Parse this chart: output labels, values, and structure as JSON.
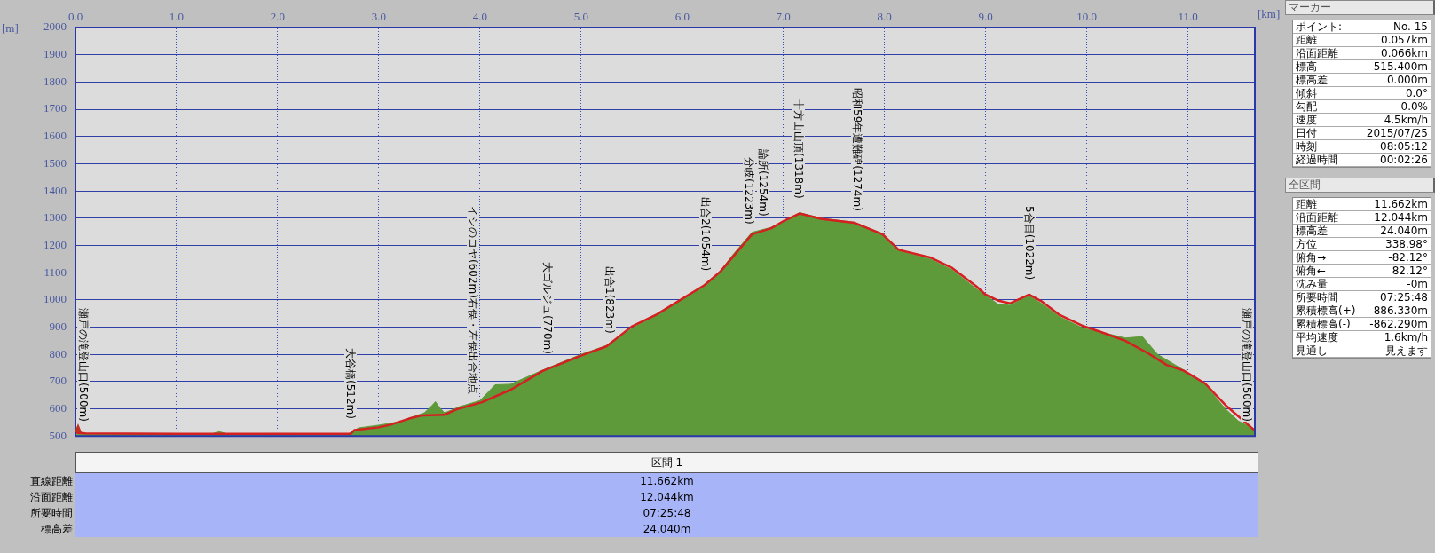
{
  "chart_data": [
    {
      "type": "area",
      "xlabel": "[km]",
      "ylabel": "[m]",
      "xlim": [
        0,
        11.662
      ],
      "ylim": [
        500,
        2000
      ],
      "xticks": [
        {
          "value": 0,
          "label": "0.0"
        },
        {
          "value": 1,
          "label": "1.0"
        },
        {
          "value": 2,
          "label": "2.0"
        },
        {
          "value": 3,
          "label": "3.0"
        },
        {
          "value": 4,
          "label": "4.0"
        },
        {
          "value": 5,
          "label": "5.0"
        },
        {
          "value": 6,
          "label": "6.0"
        },
        {
          "value": 7,
          "label": "7.0"
        },
        {
          "value": 8,
          "label": "8.0"
        },
        {
          "value": 9,
          "label": "9.0"
        },
        {
          "value": 10,
          "label": "10.0"
        },
        {
          "value": 11,
          "label": "11.0"
        }
      ],
      "yticks": [
        500,
        600,
        700,
        800,
        900,
        1000,
        1100,
        1200,
        1300,
        1400,
        1500,
        1600,
        1700,
        1800,
        1900,
        2000
      ],
      "grid": true,
      "legend": false,
      "series": [
        {
          "type": "area",
          "color": "#5f9a3a",
          "x": [
            0,
            0.5,
            1.35,
            1.42,
            1.5,
            2.0,
            2.7,
            2.8,
            3.0,
            3.2,
            3.3,
            3.45,
            3.52,
            3.56,
            3.6,
            3.65,
            3.8,
            4.0,
            4.15,
            4.3,
            4.62,
            5.0,
            5.25,
            5.5,
            5.75,
            6.0,
            6.22,
            6.38,
            6.51,
            6.69,
            6.88,
            7.01,
            7.16,
            7.38,
            7.7,
            7.98,
            8.14,
            8.45,
            8.67,
            8.91,
            9.12,
            9.24,
            9.43,
            9.56,
            9.73,
            9.97,
            10.14,
            10.38,
            10.55,
            10.7,
            10.96,
            11.17,
            11.37,
            11.5,
            11.662
          ],
          "values": [
            505,
            507,
            508,
            516,
            508,
            509,
            508,
            530,
            540,
            552,
            566,
            585,
            610,
            626,
            605,
            585,
            608,
            630,
            688,
            690,
            742,
            800,
            832,
            895,
            945,
            1002,
            1050,
            1108,
            1170,
            1248,
            1266,
            1290,
            1320,
            1299,
            1285,
            1243,
            1180,
            1150,
            1110,
            1040,
            985,
            980,
            1015,
            985,
            938,
            895,
            882,
            860,
            865,
            800,
            742,
            690,
            600,
            555,
            525
          ]
        },
        {
          "type": "line",
          "color": "#d42020",
          "x": [
            0,
            0.1,
            0.5,
            1.0,
            1.5,
            2.0,
            2.5,
            2.72,
            2.76,
            3.0,
            3.11,
            3.3,
            3.43,
            3.65,
            3.77,
            4.02,
            4.31,
            4.62,
            5.0,
            5.25,
            5.5,
            5.75,
            6.0,
            6.22,
            6.38,
            6.51,
            6.69,
            6.88,
            7.01,
            7.16,
            7.38,
            7.7,
            7.98,
            8.14,
            8.45,
            8.67,
            8.91,
            9.0,
            9.12,
            9.24,
            9.43,
            9.56,
            9.73,
            9.97,
            10.14,
            10.38,
            10.61,
            10.79,
            10.96,
            11.17,
            11.37,
            11.662
          ],
          "values": [
            512,
            510,
            509,
            508,
            508,
            508,
            508,
            508,
            522,
            532,
            541,
            564,
            576,
            578,
            598,
            624,
            671,
            739,
            795,
            829,
            902,
            947,
            1004,
            1054,
            1105,
            1162,
            1241,
            1263,
            1291,
            1317,
            1297,
            1283,
            1241,
            1184,
            1156,
            1117,
            1049,
            1019,
            998,
            987,
            1019,
            993,
            945,
            903,
            882,
            850,
            803,
            761,
            740,
            693,
            614,
            520
          ]
        }
      ],
      "annotations": [
        {
          "text": "瀬戸の滝登山口(500m)",
          "x": 0,
          "y": 500
        },
        {
          "text": "大谷橋(512m)",
          "x": 2.72,
          "y": 512
        },
        {
          "text": "イシのコヤ(602m)右俣・左俣出合地点",
          "x": 3.93,
          "y": 602
        },
        {
          "text": "大ゴルジュ(770m)",
          "x": 4.67,
          "y": 750
        },
        {
          "text": "出合1(823m)",
          "x": 5.28,
          "y": 823
        },
        {
          "text": "出合2(1054m)",
          "x": 6.23,
          "y": 1054
        },
        {
          "text": "分岐(1223m)",
          "x": 6.66,
          "y": 1223
        },
        {
          "text": "論所(1254m)",
          "x": 6.8,
          "y": 1254
        },
        {
          "text": "十方山山頂(1318m)",
          "x": 7.15,
          "y": 1318
        },
        {
          "text": "昭和59年遭難碑(1274m)",
          "x": 7.73,
          "y": 1274
        },
        {
          "text": "5合目(1022m)",
          "x": 9.43,
          "y": 1022
        },
        {
          "text": "瀬戸の滝登山口(500m)",
          "x": 11.64,
          "y": 500
        }
      ]
    },
    {
      "type": "other",
      "title": "マーカー",
      "annotations": [
        "ポイント:",
        "No. 15",
        "距離",
        "0.057km",
        "沿面距離",
        "0.066km",
        "標高",
        "515.400m",
        "標高差",
        "0.000m",
        "傾斜",
        "0.0°",
        "勾配",
        "0.0%",
        "速度",
        "4.5km/h",
        "日付",
        "2015/07/25",
        "時刻",
        "08:05:12",
        "経過時間",
        "00:02:26"
      ]
    },
    {
      "type": "other",
      "title": "全区間",
      "annotations": [
        "距離",
        "11.662km",
        "沿面距離",
        "12.044km",
        "標高差",
        "24.040m",
        "方位",
        "338.98°",
        "俯角→",
        "-82.12°",
        "俯角←",
        "82.12°",
        "沈み量",
        "-0m",
        "所要時間",
        "07:25:48",
        "累積標高(+)",
        "886.330m",
        "累積標高(-)",
        "-862.290m",
        "平均速度",
        "1.6km/h",
        "見通し",
        "見えます"
      ]
    },
    {
      "type": "other",
      "title": "区間 1",
      "annotations": [
        "直線距離",
        "11.662km",
        "沿面距離",
        "12.044km",
        "所要時間",
        "07:25:48",
        "標高差",
        "24.040m"
      ]
    }
  ]
}
